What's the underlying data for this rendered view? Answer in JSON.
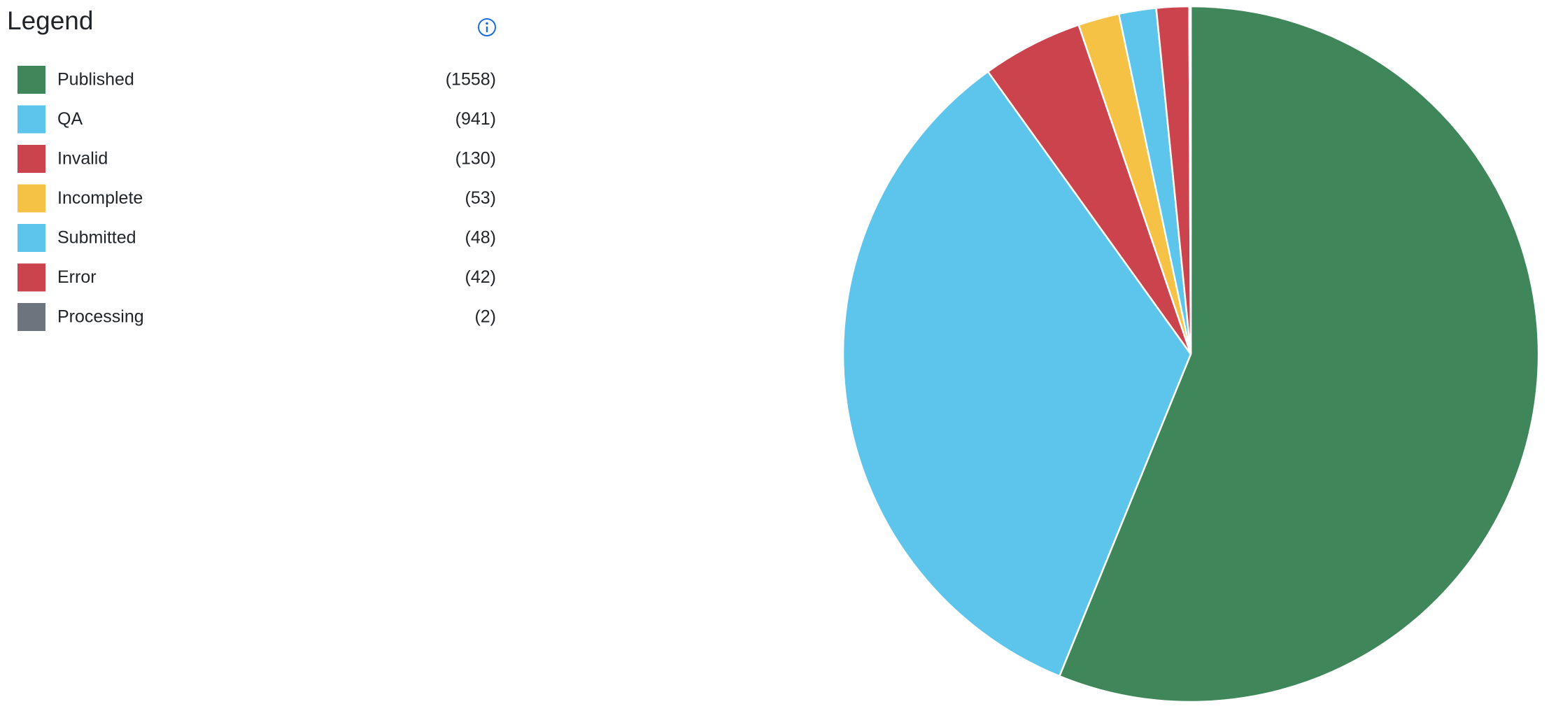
{
  "chart_data": {
    "type": "pie",
    "title": "Legend",
    "categories": [
      "Published",
      "QA",
      "Invalid",
      "Incomplete",
      "Submitted",
      "Error",
      "Processing"
    ],
    "values": [
      1558,
      941,
      130,
      53,
      48,
      42,
      2
    ],
    "value_labels": [
      "(1558)",
      "(941)",
      "(130)",
      "(53)",
      "(48)",
      "(42)",
      "(2)"
    ],
    "colors": [
      "#3f875a",
      "#5dc5eb",
      "#cb444d",
      "#f5c245",
      "#5dc5eb",
      "#cb444d",
      "#6c757d"
    ]
  }
}
